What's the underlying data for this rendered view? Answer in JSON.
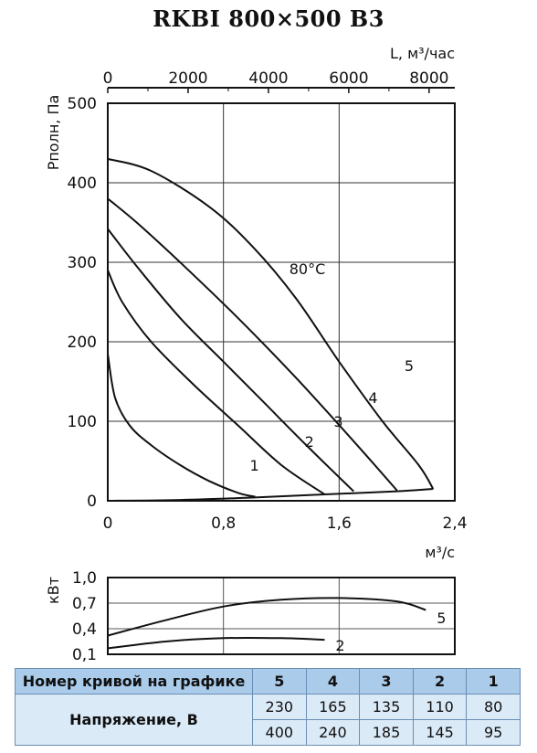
{
  "title": "RKBI 800×500 B3",
  "chart_data": [
    {
      "type": "line",
      "title": "RKBI 800×500 B3",
      "ylabel": "Pполн, Па",
      "xlabel": "м³/с",
      "x2label": "L, м³/час",
      "xlim": [
        0,
        2.4
      ],
      "ylim": [
        0,
        500
      ],
      "x2lim": [
        0,
        8640
      ],
      "x_ticks": [
        "0",
        "0,8",
        "1,6",
        "2,4"
      ],
      "y_ticks": [
        "0",
        "100",
        "200",
        "300",
        "400",
        "500"
      ],
      "x2_ticks": [
        "0",
        "2000",
        "4000",
        "6000",
        "8000"
      ],
      "grid": true,
      "annotation": "80°C",
      "series": [
        {
          "name": "1",
          "x": [
            0,
            0.05,
            0.15,
            0.3,
            0.5,
            0.7,
            0.9,
            1.02
          ],
          "y": [
            185,
            130,
            95,
            70,
            45,
            25,
            10,
            5
          ]
        },
        {
          "name": "2",
          "x": [
            0,
            0.1,
            0.3,
            0.6,
            0.9,
            1.2,
            1.5
          ],
          "y": [
            290,
            250,
            200,
            145,
            95,
            45,
            8
          ]
        },
        {
          "name": "3",
          "x": [
            0,
            0.2,
            0.5,
            0.8,
            1.1,
            1.4,
            1.7
          ],
          "y": [
            342,
            295,
            230,
            175,
            120,
            65,
            12
          ]
        },
        {
          "name": "4",
          "x": [
            0,
            0.2,
            0.5,
            0.9,
            1.3,
            1.7,
            2.0
          ],
          "y": [
            380,
            350,
            300,
            230,
            155,
            75,
            13
          ]
        },
        {
          "name": "5",
          "x": [
            0,
            0.3,
            0.7,
            1.0,
            1.3,
            1.6,
            1.9,
            2.15,
            2.25
          ],
          "y": [
            430,
            415,
            370,
            320,
            255,
            175,
            100,
            45,
            15
          ]
        },
        {
          "name": "system",
          "x": [
            0,
            0.5,
            1.0,
            1.5,
            2.0,
            2.25
          ],
          "y": [
            0,
            1,
            4,
            8,
            12,
            15
          ]
        }
      ],
      "curve_labels": [
        "1",
        "2",
        "3",
        "4",
        "5"
      ]
    },
    {
      "type": "line",
      "ylabel": "кВт",
      "xlim": [
        0,
        2.4
      ],
      "ylim": [
        0.1,
        1.0
      ],
      "y_ticks": [
        "1,0",
        "0,7",
        "0,4",
        "0,1"
      ],
      "grid": true,
      "series": [
        {
          "name": "5",
          "x": [
            0,
            0.4,
            0.8,
            1.2,
            1.6,
            2.0,
            2.2
          ],
          "y": [
            0.32,
            0.5,
            0.66,
            0.74,
            0.76,
            0.72,
            0.62
          ]
        },
        {
          "name": "2",
          "x": [
            0,
            0.4,
            0.8,
            1.2,
            1.5
          ],
          "y": [
            0.17,
            0.25,
            0.29,
            0.29,
            0.27
          ]
        }
      ]
    }
  ],
  "table": {
    "header_label": "Номер кривой на графике",
    "curves": [
      "5",
      "4",
      "3",
      "2",
      "1"
    ],
    "row_label": "Напряжение, В",
    "voltage_low": [
      "230",
      "165",
      "135",
      "110",
      "80"
    ],
    "voltage_high": [
      "400",
      "240",
      "185",
      "145",
      "95"
    ]
  }
}
